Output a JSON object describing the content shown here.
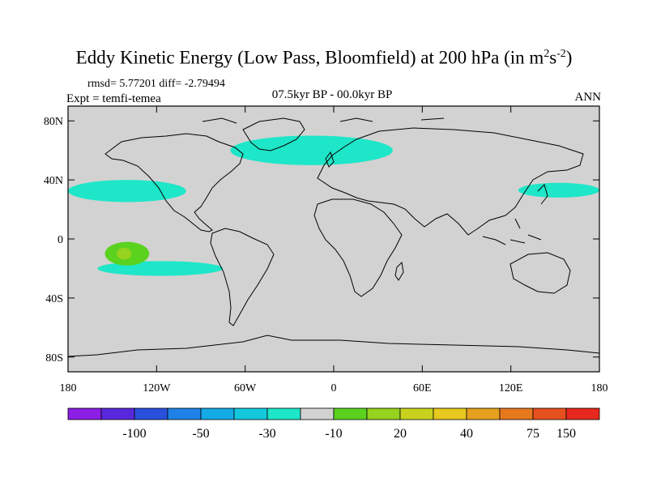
{
  "chart_data": {
    "type": "heatmap",
    "title": "Eddy Kinetic Energy (Low Pass, Bloomfield) at 200 hPa (in m",
    "title_units_sup1": "2",
    "title_units_mid": "s",
    "title_units_sup2": "-2",
    "title_units_end": ")",
    "stats_text": "rmsd= 5.77201 diff= -2.79494",
    "left_label": "Expt = temfi-temea",
    "center_label": "07.5kyr BP - 00.0kyr BP",
    "right_label": "ANN",
    "x_axis": {
      "range": [
        -180,
        180
      ],
      "ticks": [
        -180,
        -120,
        -60,
        0,
        60,
        120,
        180
      ],
      "tick_labels": [
        "180",
        "120W",
        "60W",
        "0",
        "60E",
        "120E",
        "180"
      ]
    },
    "y_axis": {
      "range": [
        -90,
        90
      ],
      "ticks": [
        80,
        40,
        0,
        -40,
        -80
      ],
      "tick_labels": [
        "80N",
        "40N",
        "0",
        "40S",
        "80S"
      ]
    },
    "colorbar": {
      "colors": [
        "#8c1ee6",
        "#5a28dc",
        "#2850dc",
        "#1e82e6",
        "#14aae6",
        "#14c8dc",
        "#1ee6c8",
        "#d2d2d2",
        "#5ad21e",
        "#96d21e",
        "#c8d21e",
        "#e6c81e",
        "#e6a01e",
        "#e6781e",
        "#e6501e",
        "#e6281e"
      ],
      "labels": [
        "-100",
        "-50",
        "-30",
        "-10",
        "20",
        "40",
        "75",
        "150"
      ],
      "label_boundary_index": [
        2,
        4,
        6,
        8,
        10,
        12,
        14,
        15
      ]
    },
    "regions": [
      {
        "name": "north-atlantic-band",
        "value_class": "-10",
        "lon": [
          -70,
          40
        ],
        "lat": [
          50,
          70
        ]
      },
      {
        "name": "north-pacific-east",
        "value_class": "-10",
        "lon": [
          -180,
          -100
        ],
        "lat": [
          25,
          40
        ]
      },
      {
        "name": "north-pacific-central",
        "value_class": "-10",
        "lon": [
          125,
          180
        ],
        "lat": [
          28,
          38
        ]
      },
      {
        "name": "south-pacific-band",
        "value_class": "-10",
        "lon": [
          -160,
          -75
        ],
        "lat": [
          -25,
          -15
        ]
      },
      {
        "name": "central-pacific-positive",
        "value_class": "20",
        "lon": [
          -155,
          -125
        ],
        "lat": [
          -18,
          -2
        ]
      },
      {
        "name": "central-pacific-core",
        "value_class": "40",
        "lon": [
          -147,
          -137
        ],
        "lat": [
          -14,
          -6
        ]
      }
    ]
  }
}
